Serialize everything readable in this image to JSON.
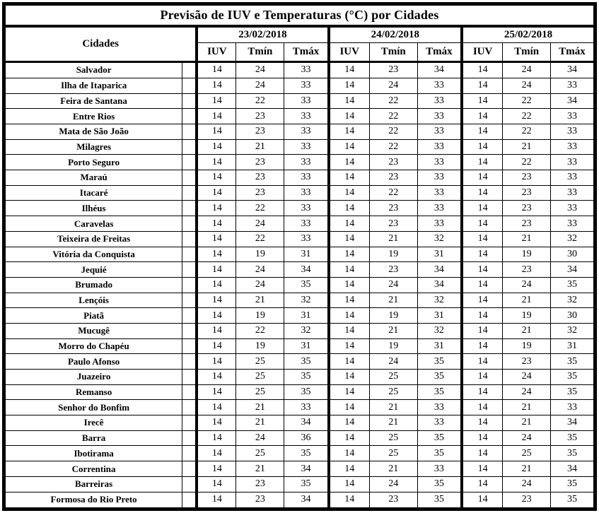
{
  "title": "Previsão de IUV e Temperaturas (°C) por Cidades",
  "table": {
    "city_column_header": "Cidades",
    "date_groups": [
      "23/02/2018",
      "24/02/2018",
      "25/02/2018"
    ],
    "sub_headers": [
      "IUV",
      "Tmín",
      "Tmáx"
    ],
    "rows": [
      {
        "city": "Salvador",
        "values": [
          14,
          24,
          33,
          14,
          23,
          34,
          14,
          24,
          34
        ]
      },
      {
        "city": "Ilha de Itaparica",
        "values": [
          14,
          24,
          33,
          14,
          24,
          33,
          14,
          24,
          33
        ]
      },
      {
        "city": "Feira de Santana",
        "values": [
          14,
          22,
          33,
          14,
          22,
          33,
          14,
          22,
          34
        ]
      },
      {
        "city": "Entre Rios",
        "values": [
          14,
          23,
          33,
          14,
          22,
          33,
          14,
          22,
          33
        ]
      },
      {
        "city": "Mata de São João",
        "values": [
          14,
          23,
          33,
          14,
          22,
          33,
          14,
          22,
          33
        ]
      },
      {
        "city": "Milagres",
        "values": [
          14,
          21,
          33,
          14,
          22,
          33,
          14,
          21,
          33
        ]
      },
      {
        "city": "Porto Seguro",
        "values": [
          14,
          23,
          33,
          14,
          23,
          33,
          14,
          22,
          33
        ]
      },
      {
        "city": "Maraú",
        "values": [
          14,
          23,
          33,
          14,
          23,
          33,
          14,
          23,
          33
        ]
      },
      {
        "city": "Itacaré",
        "values": [
          14,
          23,
          33,
          14,
          22,
          33,
          14,
          23,
          33
        ]
      },
      {
        "city": "Ilhéus",
        "values": [
          14,
          22,
          33,
          14,
          23,
          33,
          14,
          23,
          33
        ]
      },
      {
        "city": "Caravelas",
        "values": [
          14,
          24,
          33,
          14,
          23,
          33,
          14,
          23,
          33
        ]
      },
      {
        "city": "Teixeira de Freitas",
        "values": [
          14,
          22,
          33,
          14,
          21,
          32,
          14,
          21,
          32
        ]
      },
      {
        "city": "Vitória da Conquista",
        "values": [
          14,
          19,
          31,
          14,
          19,
          31,
          14,
          19,
          30
        ]
      },
      {
        "city": "Jequié",
        "values": [
          14,
          24,
          34,
          14,
          23,
          34,
          14,
          23,
          34
        ]
      },
      {
        "city": "Brumado",
        "values": [
          14,
          24,
          35,
          14,
          24,
          34,
          14,
          24,
          35
        ]
      },
      {
        "city": "Lençóis",
        "values": [
          14,
          21,
          32,
          14,
          21,
          32,
          14,
          21,
          32
        ]
      },
      {
        "city": "Piatã",
        "values": [
          14,
          19,
          31,
          14,
          19,
          31,
          14,
          19,
          30
        ]
      },
      {
        "city": "Mucugê",
        "values": [
          14,
          22,
          32,
          14,
          21,
          32,
          14,
          21,
          32
        ]
      },
      {
        "city": "Morro do Chapéu",
        "values": [
          14,
          19,
          31,
          14,
          19,
          31,
          14,
          19,
          31
        ]
      },
      {
        "city": "Paulo Afonso",
        "values": [
          14,
          25,
          35,
          14,
          24,
          35,
          14,
          23,
          35
        ]
      },
      {
        "city": "Juazeiro",
        "values": [
          14,
          25,
          35,
          14,
          25,
          35,
          14,
          24,
          35
        ]
      },
      {
        "city": "Remanso",
        "values": [
          14,
          25,
          35,
          14,
          25,
          35,
          14,
          24,
          35
        ]
      },
      {
        "city": "Senhor do Bonfim",
        "values": [
          14,
          21,
          33,
          14,
          21,
          33,
          14,
          21,
          33
        ]
      },
      {
        "city": "Irecê",
        "values": [
          14,
          21,
          34,
          14,
          21,
          33,
          14,
          21,
          34
        ]
      },
      {
        "city": "Barra",
        "values": [
          14,
          24,
          36,
          14,
          25,
          35,
          14,
          24,
          35
        ]
      },
      {
        "city": "Ibotirama",
        "values": [
          14,
          25,
          35,
          14,
          25,
          35,
          14,
          25,
          35
        ]
      },
      {
        "city": "Correntina",
        "values": [
          14,
          21,
          34,
          14,
          21,
          33,
          14,
          21,
          34
        ]
      },
      {
        "city": "Barreiras",
        "values": [
          14,
          23,
          35,
          14,
          24,
          35,
          14,
          24,
          35
        ]
      },
      {
        "city": "Formosa do Rio Preto",
        "values": [
          14,
          23,
          34,
          14,
          23,
          35,
          14,
          23,
          35
        ]
      }
    ]
  },
  "colors": {
    "border": "#000000",
    "text": "#000000",
    "background": "#ffffff"
  }
}
